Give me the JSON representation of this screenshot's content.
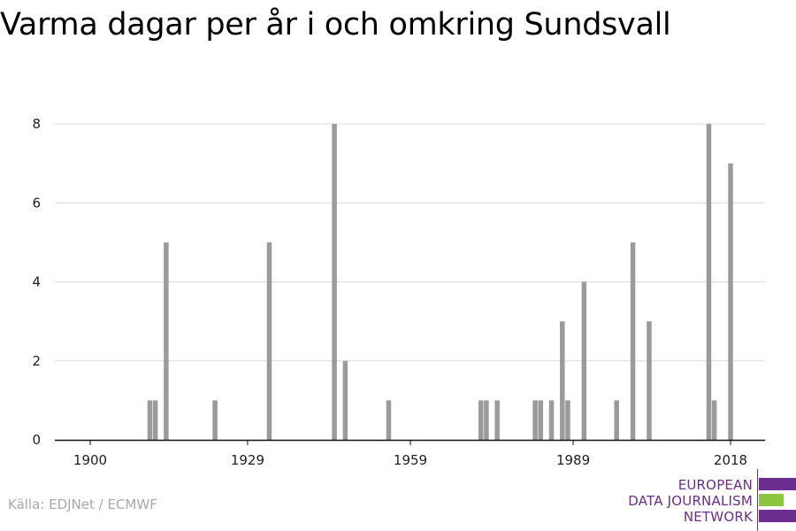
{
  "chart_data": {
    "type": "bar",
    "title": "Varma dagar per år i och omkring Sundsvall",
    "xlabel": "",
    "ylabel": "",
    "xlim": [
      1900,
      2018
    ],
    "ylim": [
      0,
      8
    ],
    "x_ticks": [
      1900,
      1929,
      1959,
      1989,
      2018
    ],
    "y_ticks": [
      0,
      2,
      4,
      6,
      8
    ],
    "grid": true,
    "bar_color": "#9b9b9b",
    "data": [
      {
        "year": 1911,
        "value": 1
      },
      {
        "year": 1912,
        "value": 1
      },
      {
        "year": 1914,
        "value": 5
      },
      {
        "year": 1923,
        "value": 1
      },
      {
        "year": 1933,
        "value": 5
      },
      {
        "year": 1945,
        "value": 8
      },
      {
        "year": 1947,
        "value": 2
      },
      {
        "year": 1955,
        "value": 1
      },
      {
        "year": 1972,
        "value": 1
      },
      {
        "year": 1973,
        "value": 1
      },
      {
        "year": 1975,
        "value": 1
      },
      {
        "year": 1982,
        "value": 1
      },
      {
        "year": 1983,
        "value": 1
      },
      {
        "year": 1985,
        "value": 1
      },
      {
        "year": 1987,
        "value": 3
      },
      {
        "year": 1988,
        "value": 1
      },
      {
        "year": 1991,
        "value": 4
      },
      {
        "year": 1997,
        "value": 1
      },
      {
        "year": 2000,
        "value": 5
      },
      {
        "year": 2003,
        "value": 3
      },
      {
        "year": 2014,
        "value": 8
      },
      {
        "year": 2015,
        "value": 1
      },
      {
        "year": 2018,
        "value": 7
      }
    ]
  },
  "source": "Källa: EDJNet / ECMWF",
  "logo": {
    "line1": "EUROPEAN",
    "line2": "DATA JOURNALISM",
    "line3": "NETWORK",
    "purple": "#6c2d91",
    "green": "#8cc63f"
  }
}
